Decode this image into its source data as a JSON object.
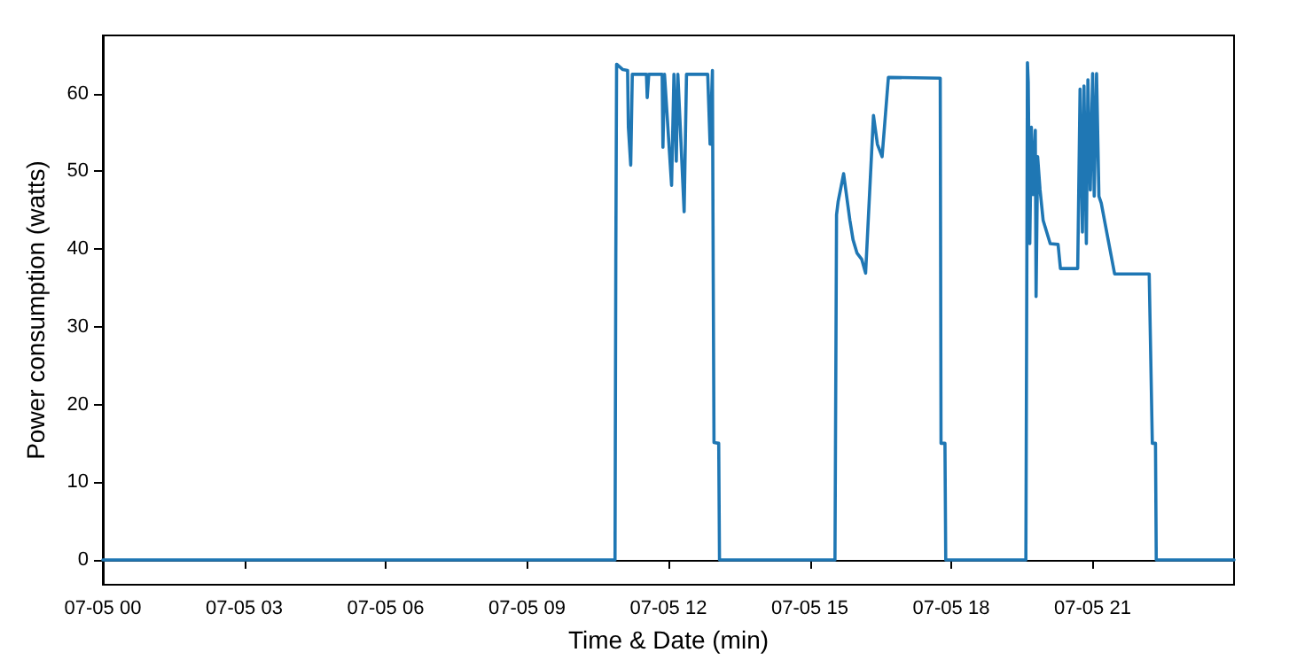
{
  "chart_data": {
    "type": "line",
    "xlabel": "Time & Date (min)",
    "ylabel": "Power consumption (watts)",
    "x": [
      "--07-05T00:00",
      "--07-05T10:52",
      "--07-05T10:53",
      "--07-05T10:54",
      "--07-05T11:02",
      "--07-05T11:08",
      "--07-05T11:09",
      "--07-05T11:12",
      "--07-05T11:14",
      "--07-05T11:32",
      "--07-05T11:33",
      "--07-05T11:35",
      "--07-05T11:52",
      "--07-05T11:53",
      "--07-05T11:55",
      "--07-05T12:04",
      "--07-05T12:07",
      "--07-05T12:10",
      "--07-05T12:12",
      "--07-05T12:20",
      "--07-05T12:23",
      "--07-05T12:50",
      "--07-05T12:53",
      "--07-05T12:56",
      "--07-05T12:57",
      "--07-05T12:58",
      "--07-05T13:04",
      "--07-05T13:05",
      "--07-05T15:32",
      "--07-05T15:34",
      "--07-05T15:36",
      "--07-05T15:43",
      "--07-05T15:51",
      "--07-05T15:55",
      "--07-05T16:00",
      "--07-05T16:06",
      "--07-05T16:11",
      "--07-05T16:21",
      "--07-05T16:26",
      "--07-05T16:32",
      "--07-05T16:40",
      "--07-05T17:46",
      "--07-05T17:47",
      "--07-05T17:52",
      "--07-05T17:53",
      "--07-05T19:35",
      "--07-05T19:36",
      "--07-05T19:37",
      "--07-05T19:38",
      "--07-05T19:40",
      "--07-05T19:42",
      "--07-05T19:44",
      "--07-05T19:47",
      "--07-05T19:48",
      "--07-05T19:50",
      "--07-05T19:53",
      "--07-05T19:57",
      "--07-05T20:06",
      "--07-05T20:16",
      "--07-05T20:19",
      "--07-05T20:41",
      "--07-05T20:44",
      "--07-05T20:47",
      "--07-05T20:49",
      "--07-05T20:52",
      "--07-05T20:54",
      "--07-05T20:57",
      "--07-05T21:00",
      "--07-05T21:02",
      "--07-05T21:05",
      "--07-05T21:08",
      "--07-05T21:11",
      "--07-05T21:19",
      "--07-05T21:28",
      "--07-05T22:12",
      "--07-05T22:16",
      "--07-05T22:20",
      "--07-05T22:21",
      "--07-06T00:00"
    ],
    "series": [
      {
        "color": "#1f77b4",
        "values": [
          0,
          0,
          38.4,
          63.8,
          63.1,
          63,
          55.7,
          50.8,
          62.5,
          62.5,
          59.5,
          62.5,
          62.5,
          53.1,
          62.5,
          48.2,
          62.5,
          51.3,
          62.5,
          44.8,
          62.5,
          62.5,
          53.5,
          63,
          37,
          15.1,
          15,
          0,
          0,
          44.4,
          46.1,
          49.7,
          43.7,
          41.2,
          39.5,
          38.7,
          36.9,
          57.2,
          53.5,
          51.9,
          62.1,
          62,
          15,
          15,
          0,
          0,
          30.2,
          64,
          61.5,
          40.7,
          55.7,
          47,
          55.3,
          33.9,
          51.9,
          47.7,
          43.7,
          40.7,
          40.6,
          37.5,
          37.5,
          60.6,
          42.2,
          61,
          40.7,
          61.8,
          47.6,
          62.6,
          46.8,
          62.6,
          46.8,
          45.9,
          41.6,
          36.8,
          36.8,
          15,
          15,
          0,
          0
        ]
      }
    ],
    "xlim": [
      "--07-05T00:00",
      "--07-06T00:00"
    ],
    "xticks": [
      {
        "value": "--07-05T00:00",
        "label": "07-05 00"
      },
      {
        "value": "--07-05T03:00",
        "label": "07-05 03"
      },
      {
        "value": "--07-05T06:00",
        "label": "07-05 06"
      },
      {
        "value": "--07-05T09:00",
        "label": "07-05 09"
      },
      {
        "value": "--07-05T12:00",
        "label": "07-05 12"
      },
      {
        "value": "--07-05T15:00",
        "label": "07-05 15"
      },
      {
        "value": "--07-05T18:00",
        "label": "07-05 18"
      },
      {
        "value": "--07-05T21:00",
        "label": "07-05 21"
      }
    ],
    "ylim": [
      -3.2,
      67.5
    ],
    "yticks": [
      0,
      10,
      20,
      30,
      40,
      50,
      60
    ],
    "marker": "none",
    "line_style": "solid"
  }
}
